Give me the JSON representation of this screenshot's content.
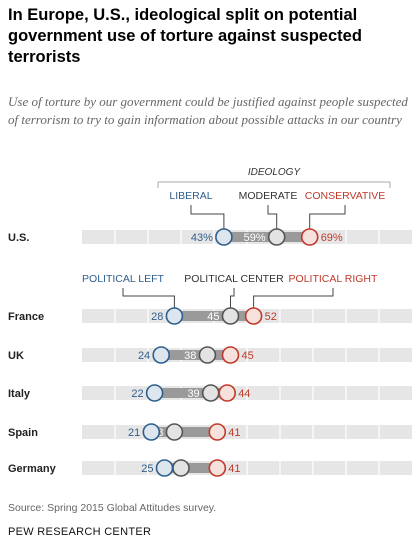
{
  "title": "In Europe, U.S., ideological split on potential government use of torture against suspected terrorists",
  "subtitle": "Use of torture by our government could be justified against people suspected of terrorism to try to gain information about possible attacks in our country",
  "source": "Source: Spring 2015 Global Attitudes survey.",
  "organization": "PEW RESEARCH CENTER",
  "colors": {
    "left": "#2e5f8c",
    "center": "#555555",
    "right": "#c0392b",
    "track": "#e6e6e6",
    "span": "#9a9a9a"
  },
  "chart_data": {
    "type": "dot-range",
    "xlim": [
      0,
      100
    ],
    "us_legend": {
      "heading": "IDEOLOGY",
      "left": "LIBERAL",
      "center": "MODERATE",
      "right": "CONSERVATIVE"
    },
    "europe_legend": {
      "left": "POLITICAL LEFT",
      "center": "POLITICAL CENTER",
      "right": "POLITICAL RIGHT"
    },
    "rows": [
      {
        "country": "U.S.",
        "left": 43,
        "center": 59,
        "right": 69,
        "left_label": "43%",
        "center_label": "59%",
        "right_label": "69%"
      },
      {
        "country": "France",
        "left": 28,
        "center": 45,
        "right": 52,
        "left_label": "28",
        "center_label": "45",
        "right_label": "52"
      },
      {
        "country": "UK",
        "left": 24,
        "center": 38,
        "right": 45,
        "left_label": "24",
        "center_label": "38",
        "right_label": "45"
      },
      {
        "country": "Italy",
        "left": 22,
        "center": 39,
        "right": 44,
        "left_label": "22",
        "center_label": "39",
        "right_label": "44"
      },
      {
        "country": "Spain",
        "left": 21,
        "center": 28,
        "right": 41,
        "left_label": "21",
        "center_label": "28",
        "right_label": "41"
      },
      {
        "country": "Germany",
        "left": 25,
        "center": 30,
        "right": 41,
        "left_label": "25",
        "center_label": "30",
        "right_label": "41"
      }
    ]
  }
}
